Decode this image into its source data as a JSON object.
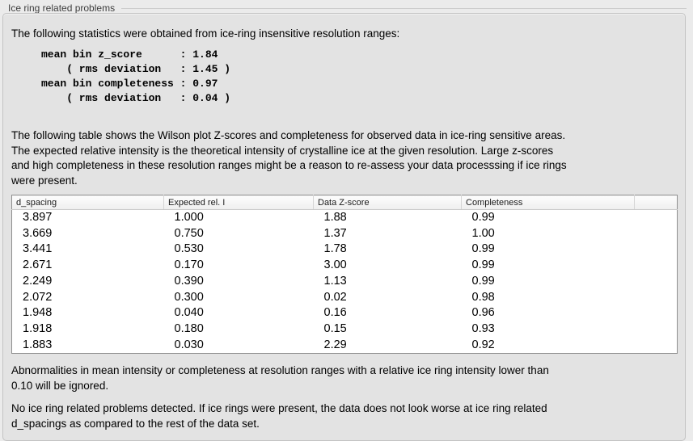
{
  "panel": {
    "title": "Ice ring related problems"
  },
  "intro": {
    "text": "The following statistics were obtained from ice-ring insensitive resolution ranges:"
  },
  "stats_block": {
    "text": "mean bin z_score      : 1.84\n    ( rms deviation   : 1.45 )\nmean bin completeness : 0.97\n    ( rms deviation   : 0.04 )"
  },
  "description": {
    "text": "The following table shows the Wilson plot Z-scores and completeness for observed data in ice-ring sensitive areas.\nThe expected relative intensity is the theoretical intensity of crystalline ice at the given resolution. Large z-scores\nand high completeness in these resolution ranges might be a reason to re-assess your data processsing if ice rings\nwere present."
  },
  "table": {
    "columns": [
      "d_spacing",
      "Expected rel. I",
      "Data Z-score",
      "Completeness",
      ""
    ],
    "rows": [
      [
        "3.897",
        "1.000",
        "1.88",
        "0.99"
      ],
      [
        "3.669",
        "0.750",
        "1.37",
        "1.00"
      ],
      [
        "3.441",
        "0.530",
        "1.78",
        "0.99"
      ],
      [
        "2.671",
        "0.170",
        "3.00",
        "0.99"
      ],
      [
        "2.249",
        "0.390",
        "1.13",
        "0.99"
      ],
      [
        "2.072",
        "0.300",
        "0.02",
        "0.98"
      ],
      [
        "1.948",
        "0.040",
        "0.16",
        "0.96"
      ],
      [
        "1.918",
        "0.180",
        "0.15",
        "0.93"
      ],
      [
        "1.883",
        "0.030",
        "2.29",
        "0.92"
      ]
    ]
  },
  "notes": {
    "ignore_note": "Abnormalities in mean intensity or completeness at resolution ranges with a relative ice ring intensity lower than\n0.10 will be ignored.",
    "conclusion": "No ice ring related problems detected. If ice rings were present, the data does not look worse at ice ring related\nd_spacings as compared to the rest of the data set."
  },
  "colors": {
    "page_bg": "#ebebeb",
    "panel_bg": "#e3e3e3",
    "table_border": "#8f8f8f",
    "header_separator": "#d5d5d5"
  }
}
